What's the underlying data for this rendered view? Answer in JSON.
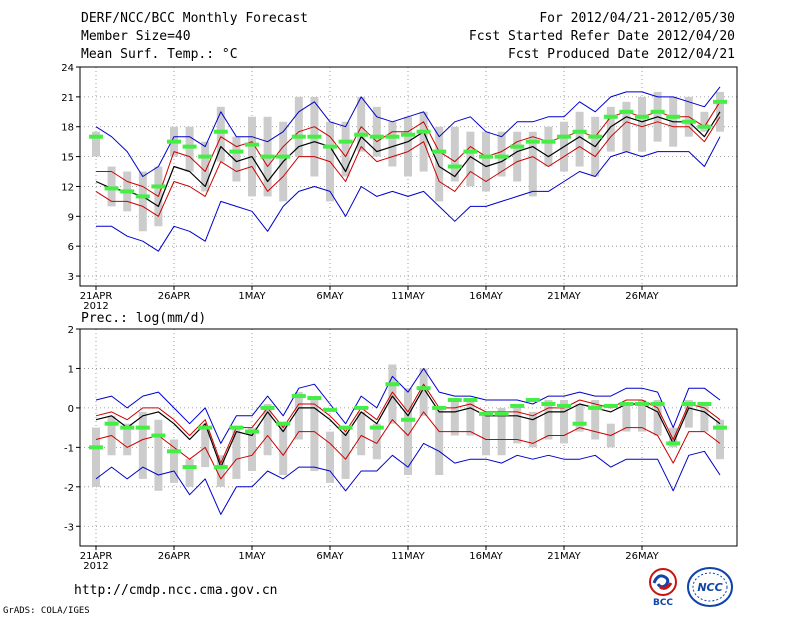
{
  "header": {
    "title": "DERF/NCC/BCC Monthly Forecast",
    "member_size": "Member Size=40",
    "variable": "Mean Surf. Temp.: °C",
    "forecast_period": "For 2012/04/21-2012/05/30",
    "fcst_started": "Fcst Started Refer Date 2012/04/20",
    "fcst_produced": "Fcst Produced Date 2012/04/21"
  },
  "footer": {
    "url": "http://cmdp.ncc.cma.gov.cn",
    "credit": "GrADS: COLA/IGES",
    "logo_bcc": "BCC",
    "logo_ncc": "NCC"
  },
  "colors": {
    "mean": "#000000",
    "spread": "#cc0000",
    "envelope": "#0000cc",
    "box": "#cccccc",
    "median": "#44ee44",
    "grid": "#888888"
  },
  "chart_data": [
    {
      "type": "box_ensemble",
      "name": "temperature",
      "title": "Mean Surf. Temp.: °C",
      "ylim": [
        2,
        24
      ],
      "yticks": [
        3,
        6,
        9,
        12,
        15,
        18,
        21,
        24
      ],
      "x_ticks": [
        {
          "day": 0,
          "label": "21APR",
          "sub": "2012"
        },
        {
          "day": 5,
          "label": "26APR"
        },
        {
          "day": 10,
          "label": "1MAY"
        },
        {
          "day": 15,
          "label": "6MAY"
        },
        {
          "day": 20,
          "label": "11MAY"
        },
        {
          "day": 25,
          "label": "16MAY"
        },
        {
          "day": 30,
          "label": "21MAY"
        },
        {
          "day": 35,
          "label": "26MAY"
        }
      ],
      "mean": [
        12.5,
        11.8,
        11.5,
        11.0,
        10.0,
        14.0,
        13.5,
        12.0,
        16.0,
        14.5,
        15.0,
        12.5,
        14.5,
        16.0,
        16.5,
        16.0,
        13.5,
        17.0,
        15.5,
        16.0,
        16.5,
        17.5,
        14.0,
        13.0,
        15.0,
        14.0,
        14.5,
        15.5,
        16.0,
        15.0,
        16.0,
        17.0,
        16.0,
        18.0,
        19.0,
        18.5,
        19.0,
        18.5,
        18.5,
        17.0,
        19.5
      ],
      "upper_spread": [
        13.5,
        13.5,
        12.5,
        12.0,
        11.0,
        15.5,
        15.0,
        13.5,
        17.0,
        16.0,
        16.5,
        14.0,
        16.0,
        17.5,
        18.0,
        17.0,
        15.0,
        18.0,
        16.5,
        17.5,
        17.5,
        18.5,
        15.5,
        14.5,
        16.0,
        15.0,
        15.5,
        16.5,
        17.0,
        16.5,
        17.0,
        17.5,
        17.0,
        19.0,
        19.5,
        19.0,
        19.5,
        19.0,
        19.0,
        18.0,
        20.5
      ],
      "lower_spread": [
        11.5,
        10.5,
        10.5,
        10.0,
        9.0,
        12.5,
        12.0,
        11.0,
        14.5,
        13.5,
        14.0,
        11.5,
        13.0,
        15.0,
        15.0,
        14.5,
        12.5,
        16.0,
        14.5,
        15.0,
        15.5,
        16.5,
        12.5,
        11.5,
        13.5,
        12.5,
        13.5,
        14.5,
        15.0,
        14.0,
        15.0,
        16.0,
        15.0,
        17.0,
        18.5,
        18.0,
        18.5,
        18.0,
        18.0,
        16.5,
        19.0
      ],
      "max": [
        18.0,
        17.0,
        15.5,
        13.0,
        14.0,
        17.0,
        17.0,
        16.0,
        19.5,
        17.0,
        17.0,
        16.5,
        17.5,
        19.5,
        20.5,
        18.5,
        18.0,
        21.0,
        19.0,
        18.5,
        19.0,
        19.5,
        17.0,
        18.5,
        19.0,
        17.5,
        17.0,
        18.5,
        18.5,
        19.0,
        19.0,
        20.5,
        19.5,
        21.0,
        21.5,
        21.5,
        21.0,
        21.0,
        20.5,
        20.0,
        22.0
      ],
      "min": [
        8.0,
        8.0,
        7.0,
        6.5,
        5.5,
        8.0,
        7.5,
        6.5,
        10.5,
        10.0,
        9.5,
        7.5,
        10.0,
        11.5,
        12.0,
        11.5,
        9.0,
        12.0,
        11.0,
        11.5,
        11.0,
        11.5,
        10.0,
        8.5,
        10.0,
        10.0,
        10.5,
        11.0,
        11.5,
        11.5,
        12.5,
        13.5,
        13.0,
        15.0,
        15.5,
        15.0,
        15.5,
        15.5,
        15.5,
        14.0,
        17.0
      ],
      "box_top": [
        17.5,
        14.0,
        13.5,
        13.5,
        14.0,
        18.0,
        18.0,
        16.5,
        20.0,
        17.0,
        19.0,
        19.0,
        18.5,
        21.0,
        21.0,
        18.5,
        18.5,
        21.0,
        20.0,
        18.5,
        19.0,
        19.5,
        18.0,
        18.0,
        17.5,
        17.5,
        17.5,
        17.5,
        17.5,
        18.0,
        18.5,
        19.5,
        19.0,
        20.0,
        20.5,
        21.0,
        21.5,
        21.0,
        21.0,
        19.5,
        21.5
      ],
      "box_bottom": [
        15.0,
        10.0,
        9.5,
        7.5,
        8.0,
        15.0,
        13.5,
        11.5,
        14.5,
        12.5,
        11.0,
        11.0,
        10.5,
        15.0,
        13.0,
        10.5,
        13.0,
        15.5,
        15.0,
        14.0,
        13.0,
        13.5,
        10.5,
        12.5,
        12.0,
        11.5,
        13.0,
        12.5,
        11.0,
        14.0,
        13.5,
        14.0,
        13.0,
        15.5,
        15.5,
        15.5,
        16.5,
        16.0,
        17.0,
        17.5,
        17.5
      ],
      "median": [
        17.0,
        11.8,
        11.5,
        11.0,
        12.0,
        16.5,
        16.0,
        15.0,
        17.5,
        15.5,
        16.2,
        15.0,
        15.0,
        17.0,
        17.0,
        16.0,
        16.5,
        17.2,
        17.0,
        17.0,
        17.2,
        17.5,
        15.5,
        14.0,
        15.5,
        15.0,
        15.0,
        16.0,
        16.5,
        16.5,
        17.0,
        17.5,
        17.0,
        19.0,
        19.5,
        19.0,
        19.5,
        19.0,
        18.5,
        18.0,
        20.5
      ]
    },
    {
      "type": "box_ensemble",
      "name": "precipitation",
      "title": "Prec.: log(mm/d)",
      "ylim": [
        -3.5,
        2
      ],
      "yticks": [
        -3,
        -2,
        -1,
        0,
        1,
        2
      ],
      "x_ticks": [
        {
          "day": 0,
          "label": "21APR",
          "sub": "2012"
        },
        {
          "day": 5,
          "label": "26APR"
        },
        {
          "day": 10,
          "label": "1MAY"
        },
        {
          "day": 15,
          "label": "6MAY"
        },
        {
          "day": 20,
          "label": "11MAY"
        },
        {
          "day": 25,
          "label": "16MAY"
        },
        {
          "day": 30,
          "label": "21MAY"
        },
        {
          "day": 35,
          "label": "26MAY"
        }
      ],
      "mean": [
        -0.3,
        -0.2,
        -0.5,
        -0.2,
        -0.1,
        -0.4,
        -0.8,
        -0.4,
        -1.5,
        -0.6,
        -0.7,
        -0.1,
        -0.6,
        0.0,
        0.0,
        -0.3,
        -0.7,
        -0.1,
        -0.4,
        0.3,
        -0.2,
        0.5,
        -0.1,
        -0.1,
        0.0,
        -0.2,
        -0.2,
        -0.2,
        -0.3,
        -0.1,
        -0.1,
        0.1,
        0.0,
        -0.1,
        0.1,
        0.1,
        -0.1,
        -0.9,
        0.0,
        -0.1,
        -0.4
      ],
      "upper_spread": [
        -0.2,
        -0.1,
        -0.3,
        0.0,
        0.0,
        -0.3,
        -0.7,
        -0.3,
        -1.4,
        -0.5,
        -0.5,
        0.0,
        -0.5,
        0.1,
        0.1,
        -0.2,
        -0.6,
        0.0,
        -0.3,
        0.4,
        -0.1,
        0.6,
        0.0,
        0.0,
        0.1,
        -0.1,
        -0.1,
        -0.1,
        -0.2,
        0.0,
        0.0,
        0.2,
        0.1,
        0.0,
        0.2,
        0.2,
        0.0,
        -0.8,
        0.1,
        0.0,
        -0.3
      ],
      "lower_spread": [
        -0.8,
        -0.7,
        -1.0,
        -0.8,
        -0.7,
        -1.0,
        -1.3,
        -1.0,
        -1.8,
        -1.3,
        -1.2,
        -0.7,
        -1.2,
        -0.6,
        -0.6,
        -0.9,
        -1.3,
        -0.7,
        -0.9,
        -0.3,
        -0.7,
        -0.1,
        -0.6,
        -0.6,
        -0.6,
        -0.8,
        -0.8,
        -0.8,
        -0.9,
        -0.7,
        -0.7,
        -0.5,
        -0.6,
        -0.7,
        -0.5,
        -0.5,
        -0.7,
        -1.4,
        -0.6,
        -0.6,
        -0.9
      ],
      "max": [
        0.2,
        0.3,
        0.0,
        0.3,
        0.4,
        0.0,
        -0.4,
        0.0,
        -0.9,
        -0.2,
        -0.2,
        0.3,
        -0.2,
        0.5,
        0.6,
        0.1,
        -0.4,
        0.3,
        0.0,
        0.8,
        0.4,
        1.0,
        0.4,
        0.3,
        0.3,
        0.2,
        0.2,
        0.2,
        0.1,
        0.3,
        0.3,
        0.4,
        0.3,
        0.3,
        0.5,
        0.5,
        0.4,
        -0.5,
        0.5,
        0.5,
        0.2
      ],
      "min": [
        -1.8,
        -1.5,
        -1.8,
        -1.5,
        -1.7,
        -1.6,
        -2.2,
        -1.8,
        -2.7,
        -2.0,
        -2.0,
        -1.6,
        -1.8,
        -1.5,
        -1.5,
        -1.6,
        -2.1,
        -1.6,
        -1.6,
        -1.2,
        -1.5,
        -0.9,
        -1.1,
        -1.4,
        -1.3,
        -1.3,
        -1.4,
        -1.2,
        -1.3,
        -1.2,
        -1.3,
        -1.3,
        -1.2,
        -1.5,
        -1.3,
        -1.3,
        -1.3,
        -2.1,
        -1.2,
        -1.1,
        -1.7
      ],
      "box_top": [
        -0.5,
        -0.2,
        -0.4,
        -0.1,
        -0.3,
        -0.8,
        -1.3,
        -0.5,
        -1.2,
        -0.5,
        -0.5,
        0.1,
        -0.4,
        0.4,
        0.3,
        -0.6,
        -0.6,
        -0.1,
        -0.4,
        1.1,
        0.5,
        1.0,
        0.0,
        0.2,
        0.2,
        -0.1,
        0.0,
        0.0,
        -0.1,
        0.2,
        0.2,
        0.1,
        0.2,
        -0.4,
        0.1,
        0.2,
        0.2,
        -0.5,
        0.2,
        0.1,
        -0.3
      ],
      "box_bottom": [
        -2.0,
        -1.2,
        -1.2,
        -1.8,
        -2.1,
        -1.9,
        -2.0,
        -1.5,
        -2.0,
        -1.8,
        -1.6,
        -1.2,
        -1.7,
        -0.8,
        -1.6,
        -1.9,
        -1.8,
        -1.2,
        -1.3,
        -0.4,
        -1.7,
        -0.2,
        -1.7,
        -0.7,
        -0.7,
        -1.2,
        -1.2,
        -0.9,
        -1.0,
        -0.8,
        -0.9,
        -0.6,
        -0.8,
        -1.0,
        -0.6,
        -0.6,
        -0.7,
        -1.0,
        -0.5,
        -0.6,
        -1.3
      ],
      "median": [
        -1.0,
        -0.4,
        -0.5,
        -0.5,
        -0.7,
        -1.1,
        -1.5,
        -0.5,
        -1.5,
        -0.5,
        -0.6,
        0.0,
        -0.4,
        0.3,
        0.25,
        -0.05,
        -0.5,
        0.0,
        -0.5,
        0.6,
        -0.3,
        0.5,
        0.0,
        0.2,
        0.2,
        -0.15,
        -0.15,
        0.05,
        0.2,
        0.1,
        0.05,
        -0.4,
        0.0,
        0.05,
        0.1,
        0.1,
        0.1,
        -0.9,
        0.1,
        0.1,
        -0.5
      ]
    }
  ]
}
